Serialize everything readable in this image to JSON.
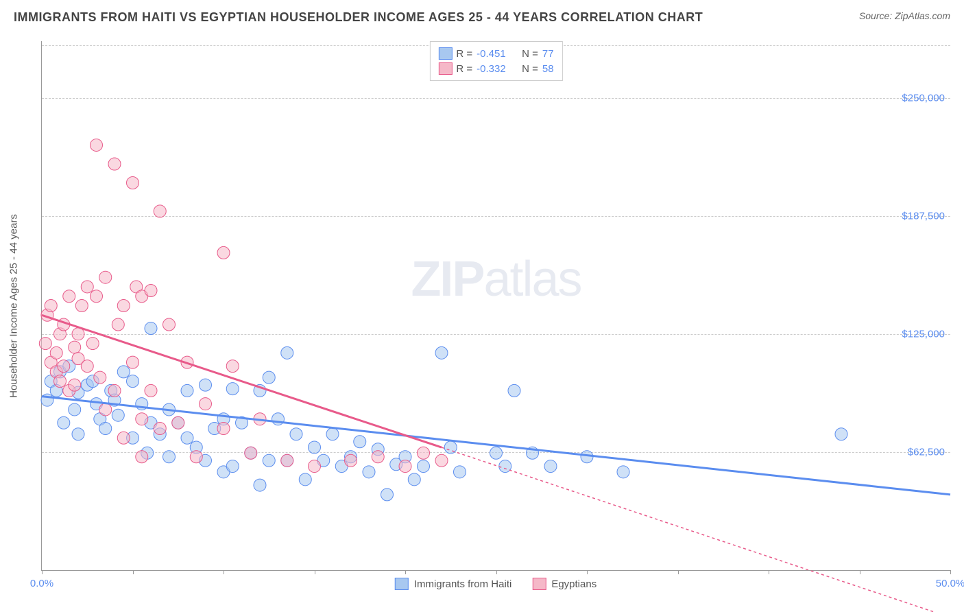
{
  "title": "IMMIGRANTS FROM HAITI VS EGYPTIAN HOUSEHOLDER INCOME AGES 25 - 44 YEARS CORRELATION CHART",
  "source_label": "Source: ",
  "source_name": "ZipAtlas.com",
  "watermark_a": "ZIP",
  "watermark_b": "atlas",
  "chart": {
    "type": "scatter",
    "background_color": "#ffffff",
    "grid_color": "#cccccc",
    "axis_color": "#999999",
    "xlim": [
      0,
      50
    ],
    "ylim": [
      0,
      280000
    ],
    "x_tick_positions": [
      0,
      5,
      10,
      15,
      20,
      25,
      30,
      35,
      40,
      45,
      50
    ],
    "x_tick_labels": {
      "0": "0.0%",
      "50": "50.0%"
    },
    "y_grid_positions": [
      62500,
      125000,
      187500,
      250000,
      278000
    ],
    "y_tick_labels": {
      "62500": "$62,500",
      "125000": "$125,000",
      "187500": "$187,500",
      "250000": "$250,000"
    },
    "y_axis_title": "Householder Income Ages 25 - 44 years",
    "marker_radius": 9,
    "marker_opacity": 0.55,
    "trend_line_width": 3,
    "series": [
      {
        "name": "Immigrants from Haiti",
        "fill_color": "#a8c8f0",
        "stroke_color": "#5b8def",
        "R": "-0.451",
        "N": "77",
        "trend": {
          "x1": 0,
          "y1": 92000,
          "x2": 50,
          "y2": 40000,
          "dash": "none"
        },
        "points": [
          [
            0.3,
            90000
          ],
          [
            0.5,
            100000
          ],
          [
            0.8,
            95000
          ],
          [
            1.0,
            105000
          ],
          [
            1.2,
            78000
          ],
          [
            1.5,
            108000
          ],
          [
            1.8,
            85000
          ],
          [
            2.0,
            94000
          ],
          [
            2.0,
            72000
          ],
          [
            2.5,
            98000
          ],
          [
            2.8,
            100000
          ],
          [
            3.0,
            88000
          ],
          [
            3.2,
            80000
          ],
          [
            3.5,
            75000
          ],
          [
            3.8,
            95000
          ],
          [
            4.0,
            90000
          ],
          [
            4.2,
            82000
          ],
          [
            4.5,
            105000
          ],
          [
            5.0,
            100000
          ],
          [
            5.0,
            70000
          ],
          [
            5.5,
            88000
          ],
          [
            5.8,
            62000
          ],
          [
            6.0,
            78000
          ],
          [
            6.0,
            128000
          ],
          [
            6.5,
            72000
          ],
          [
            7.0,
            85000
          ],
          [
            7.0,
            60000
          ],
          [
            7.5,
            78000
          ],
          [
            8.0,
            95000
          ],
          [
            8.0,
            70000
          ],
          [
            8.5,
            65000
          ],
          [
            9.0,
            98000
          ],
          [
            9.0,
            58000
          ],
          [
            9.5,
            75000
          ],
          [
            10.0,
            80000
          ],
          [
            10.0,
            52000
          ],
          [
            10.5,
            96000
          ],
          [
            10.5,
            55000
          ],
          [
            11.0,
            78000
          ],
          [
            11.5,
            62000
          ],
          [
            12.0,
            95000
          ],
          [
            12.0,
            45000
          ],
          [
            12.5,
            102000
          ],
          [
            12.5,
            58000
          ],
          [
            13.0,
            80000
          ],
          [
            13.5,
            58000
          ],
          [
            13.5,
            115000
          ],
          [
            14.0,
            72000
          ],
          [
            14.5,
            48000
          ],
          [
            15.0,
            65000
          ],
          [
            15.5,
            58000
          ],
          [
            16.0,
            72000
          ],
          [
            16.5,
            55000
          ],
          [
            17.0,
            60000
          ],
          [
            17.5,
            68000
          ],
          [
            18.0,
            52000
          ],
          [
            18.5,
            64000
          ],
          [
            19.0,
            40000
          ],
          [
            19.5,
            56000
          ],
          [
            20.0,
            60000
          ],
          [
            20.5,
            48000
          ],
          [
            21.0,
            55000
          ],
          [
            22.0,
            115000
          ],
          [
            22.5,
            65000
          ],
          [
            23.0,
            52000
          ],
          [
            25.0,
            62000
          ],
          [
            25.5,
            55000
          ],
          [
            26.0,
            95000
          ],
          [
            27.0,
            62000
          ],
          [
            28.0,
            55000
          ],
          [
            30.0,
            60000
          ],
          [
            32.0,
            52000
          ],
          [
            44.0,
            72000
          ]
        ]
      },
      {
        "name": "Egyptians",
        "fill_color": "#f5b8c8",
        "stroke_color": "#e85a8a",
        "R": "-0.332",
        "N": "58",
        "trend": {
          "x1": 0,
          "y1": 135000,
          "x2": 22,
          "y2": 65000,
          "dash": "none"
        },
        "trend_ext": {
          "x1": 22,
          "y1": 65000,
          "x2": 50,
          "y2": -25000,
          "dash": "4,4"
        },
        "points": [
          [
            0.2,
            120000
          ],
          [
            0.3,
            135000
          ],
          [
            0.5,
            110000
          ],
          [
            0.5,
            140000
          ],
          [
            0.8,
            105000
          ],
          [
            0.8,
            115000
          ],
          [
            1.0,
            125000
          ],
          [
            1.0,
            100000
          ],
          [
            1.2,
            130000
          ],
          [
            1.2,
            108000
          ],
          [
            1.5,
            145000
          ],
          [
            1.5,
            95000
          ],
          [
            1.8,
            118000
          ],
          [
            1.8,
            98000
          ],
          [
            2.0,
            125000
          ],
          [
            2.0,
            112000
          ],
          [
            2.2,
            140000
          ],
          [
            2.5,
            108000
          ],
          [
            2.5,
            150000
          ],
          [
            2.8,
            120000
          ],
          [
            3.0,
            225000
          ],
          [
            3.0,
            145000
          ],
          [
            3.2,
            102000
          ],
          [
            3.5,
            155000
          ],
          [
            3.5,
            85000
          ],
          [
            4.0,
            215000
          ],
          [
            4.0,
            95000
          ],
          [
            4.2,
            130000
          ],
          [
            4.5,
            140000
          ],
          [
            4.5,
            70000
          ],
          [
            5.0,
            205000
          ],
          [
            5.0,
            110000
          ],
          [
            5.2,
            150000
          ],
          [
            5.5,
            145000
          ],
          [
            5.5,
            80000
          ],
          [
            5.5,
            60000
          ],
          [
            6.0,
            148000
          ],
          [
            6.0,
            95000
          ],
          [
            6.5,
            190000
          ],
          [
            6.5,
            75000
          ],
          [
            7.0,
            130000
          ],
          [
            7.5,
            78000
          ],
          [
            8.0,
            110000
          ],
          [
            8.5,
            60000
          ],
          [
            9.0,
            88000
          ],
          [
            10.0,
            168000
          ],
          [
            10.0,
            75000
          ],
          [
            10.5,
            108000
          ],
          [
            11.5,
            62000
          ],
          [
            12.0,
            80000
          ],
          [
            13.5,
            58000
          ],
          [
            15.0,
            55000
          ],
          [
            17.0,
            58000
          ],
          [
            18.5,
            60000
          ],
          [
            20.0,
            55000
          ],
          [
            21.0,
            62000
          ],
          [
            22.0,
            58000
          ]
        ]
      }
    ],
    "legend_bottom": [
      {
        "label": "Immigrants from Haiti",
        "fill": "#a8c8f0",
        "stroke": "#5b8def"
      },
      {
        "label": "Egyptians",
        "fill": "#f5b8c8",
        "stroke": "#e85a8a"
      }
    ],
    "stats_label_R": "R =",
    "stats_label_N": "N =",
    "stats_value_color": "#5b8def",
    "stats_label_color": "#555555"
  }
}
